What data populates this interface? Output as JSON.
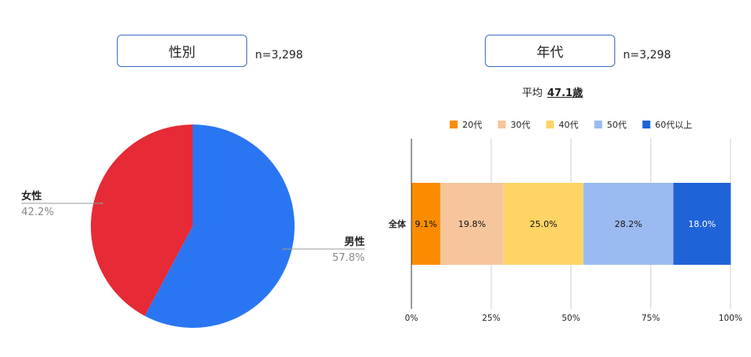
{
  "left": {
    "title": "性別",
    "n": "n=3,298"
  },
  "right": {
    "title": "年代",
    "n": "n=3,298",
    "avg_label": "平均",
    "avg_value": "47.1歳"
  },
  "chart_data": [
    {
      "type": "pie",
      "slices": [
        {
          "label": "男性",
          "value": 57.8,
          "text": "57.8%",
          "color": "#2a76f2"
        },
        {
          "label": "女性",
          "value": 42.2,
          "text": "42.2%",
          "color": "#e62a36"
        }
      ]
    },
    {
      "type": "bar",
      "orientation": "horizontal",
      "stacked": "percent",
      "categories": [
        "全体"
      ],
      "series": [
        {
          "name": "20代",
          "values": [
            9.1
          ],
          "text": "9.1%",
          "color": "#fb8c00"
        },
        {
          "name": "30代",
          "values": [
            19.8
          ],
          "text": "19.8%",
          "color": "#f7c59c"
        },
        {
          "name": "40代",
          "values": [
            25.0
          ],
          "text": "25.0%",
          "color": "#ffd465"
        },
        {
          "name": "50代",
          "values": [
            28.2
          ],
          "text": "28.2%",
          "color": "#9bbaf1"
        },
        {
          "name": "60代以上",
          "values": [
            18.0
          ],
          "text": "18.0%",
          "color": "#1f63d8"
        }
      ],
      "xticks": [
        "0%",
        "25%",
        "50%",
        "75%",
        "100%"
      ],
      "xlim": [
        0,
        100
      ],
      "grid": true,
      "legend": "top"
    }
  ]
}
